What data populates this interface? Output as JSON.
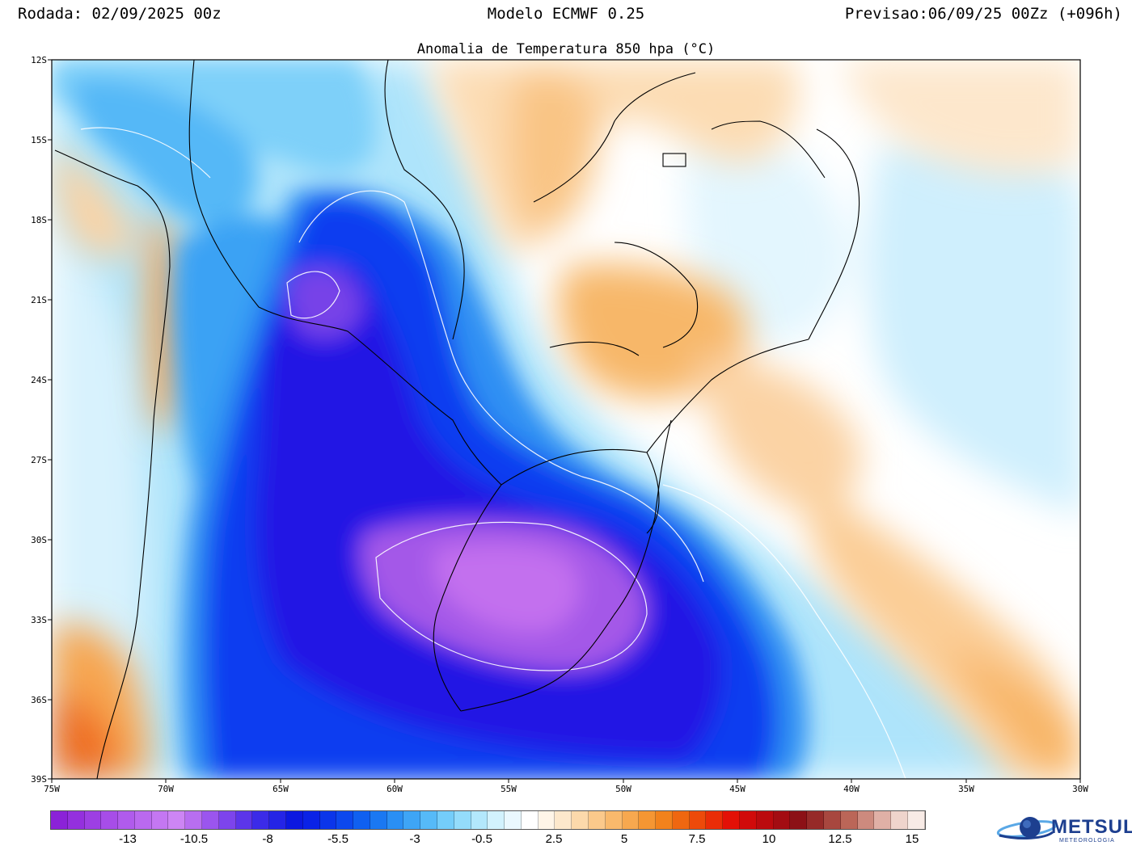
{
  "header": {
    "left": "Rodada: 02/09/2025 00z",
    "center": "Modelo ECMWF 0.25",
    "right": "Previsao:06/09/25 00Zz (+096h)"
  },
  "map_title": "Anomalia de Temperatura 850 hpa (°C)",
  "lat_labels": [
    "12S",
    "15S",
    "18S",
    "21S",
    "24S",
    "27S",
    "30S",
    "33S",
    "36S",
    "39S"
  ],
  "lon_labels": [
    "75W",
    "70W",
    "65W",
    "60W",
    "55W",
    "50W",
    "45W",
    "40W",
    "35W",
    "30W"
  ],
  "colorbar": {
    "labels": [
      "-13",
      "-10.5",
      "-8",
      "-5.5",
      "-3",
      "-0.5",
      "2.5",
      "5",
      "7.5",
      "10",
      "12.5",
      "15"
    ],
    "colors": [
      "#8b22d8",
      "#9430de",
      "#9d3fe3",
      "#a74de8",
      "#b05bec",
      "#ba69ef",
      "#c477f2",
      "#cd85f4",
      "#b86ef0",
      "#9b55ee",
      "#7d44ec",
      "#5c35ea",
      "#3b2be8",
      "#2424e6",
      "#0c18e0",
      "#0a22e6",
      "#0b35ea",
      "#0d48ee",
      "#1060f0",
      "#1a78f2",
      "#2a8ff4",
      "#3ea5f6",
      "#56baf8",
      "#74cdfa",
      "#94dcfb",
      "#b3e8fc",
      "#d2f2fd",
      "#eaf8fe",
      "#ffffff",
      "#fff5e8",
      "#fde8cc",
      "#fcd9ab",
      "#fbc98b",
      "#f9b96c",
      "#f7a84f",
      "#f59633",
      "#f2821c",
      "#ef6710",
      "#ed4a0a",
      "#ea2d07",
      "#e31006",
      "#d10a0a",
      "#bb0a0e",
      "#a30c12",
      "#8c1116",
      "#962a28",
      "#a8473f",
      "#bb6658",
      "#cd8a7e",
      "#e0b0a6",
      "#efd4cc",
      "#f8ebe6"
    ]
  },
  "logo": {
    "text": "METSUL",
    "sub": "METEOROLOGIA",
    "icon": "globe-swoosh-icon",
    "accent": "#1d3f8f"
  }
}
